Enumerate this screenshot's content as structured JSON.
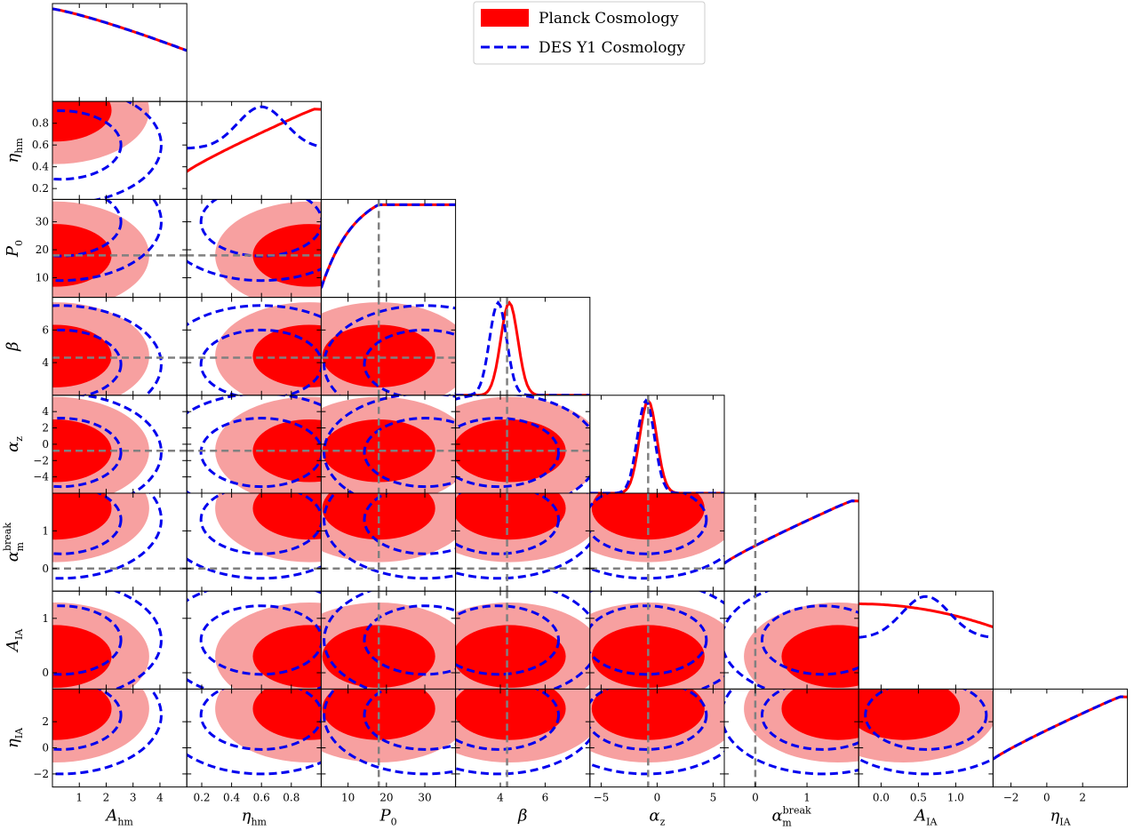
{
  "chart_data": {
    "type": "triangle-corner-plot",
    "parameters": [
      {
        "id": "A_hm",
        "symbol": "A",
        "sub": "hm",
        "sup": "",
        "range": [
          0,
          5
        ],
        "ticks": [
          1,
          2,
          3,
          4
        ],
        "tick_labels": [
          "1",
          "2",
          "3",
          "4"
        ],
        "fiducial": null
      },
      {
        "id": "eta_hm",
        "symbol": "η",
        "sub": "hm",
        "sup": "",
        "range": [
          0.1,
          1.0
        ],
        "ticks": [
          0.2,
          0.4,
          0.6,
          0.8
        ],
        "tick_labels": [
          "0.2",
          "0.4",
          "0.6",
          "0.8"
        ],
        "fiducial": null
      },
      {
        "id": "P0",
        "symbol": "P",
        "sub": "0",
        "sup": "",
        "range": [
          3,
          38
        ],
        "ticks": [
          10,
          20,
          30
        ],
        "tick_labels": [
          "10",
          "20",
          "30"
        ],
        "fiducial": 18
      },
      {
        "id": "beta",
        "symbol": "β",
        "sub": "",
        "sup": "",
        "range": [
          2,
          8
        ],
        "ticks": [
          4,
          6
        ],
        "tick_labels": [
          "4",
          "6"
        ],
        "fiducial": 4.3
      },
      {
        "id": "alpha_z",
        "symbol": "α",
        "sub": "z",
        "sup": "",
        "range": [
          -6,
          6
        ],
        "ticks": [
          -5,
          0,
          5
        ],
        "tick_labels": [
          "−5",
          "0",
          "5"
        ],
        "fiducial": -0.8
      },
      {
        "id": "alpha_m_break",
        "symbol": "α",
        "sub": "m",
        "sup": "break",
        "range": [
          -0.6,
          2.0
        ],
        "ticks": [
          0,
          1
        ],
        "tick_labels": [
          "0",
          "1"
        ],
        "fiducial": 0
      },
      {
        "id": "A_IA",
        "symbol": "A",
        "sub": "IA",
        "sup": "",
        "range": [
          -0.3,
          1.5
        ],
        "ticks": [
          0.0,
          0.5,
          1.0
        ],
        "tick_labels": [
          "0.0",
          "0.5",
          "1.0"
        ],
        "fiducial": null
      },
      {
        "id": "eta_IA",
        "symbol": "η",
        "sub": "IA",
        "sup": "",
        "range": [
          -3,
          4.5
        ],
        "ticks": [
          -2,
          0,
          2
        ],
        "tick_labels": [
          "−2",
          "0",
          "2"
        ],
        "fiducial": null
      }
    ],
    "row_tick_overrides": {
      "eta_hm": {
        "ticks": [
          0.2,
          0.4,
          0.6,
          0.8
        ],
        "tick_labels": [
          "0.2",
          "0.4",
          "0.6",
          "0.8"
        ]
      },
      "P0": {
        "ticks": [
          10,
          20,
          30
        ],
        "tick_labels": [
          "10",
          "20",
          "30"
        ]
      },
      "beta": {
        "ticks": [
          4,
          6
        ],
        "tick_labels": [
          "4",
          "6"
        ]
      },
      "alpha_z": {
        "ticks": [
          -4,
          -2,
          0,
          2,
          4
        ],
        "tick_labels": [
          "−4",
          "−2",
          "0",
          "2",
          "4"
        ]
      },
      "alpha_m_break": {
        "ticks": [
          0,
          1
        ],
        "tick_labels": [
          "0",
          "1"
        ]
      },
      "A_IA": {
        "ticks": [
          0,
          1
        ],
        "tick_labels": [
          "0",
          "1"
        ]
      },
      "eta_IA": {
        "ticks": [
          -2,
          0,
          2
        ],
        "tick_labels": [
          "−2",
          "0",
          "2"
        ]
      }
    },
    "series": [
      {
        "name": "Planck Cosmology",
        "style": "filled",
        "color": "#ff0000",
        "color_light": "#f7a0a0",
        "peaks": {
          "A_hm": 0.1,
          "eta_hm": 0.92,
          "P0": 18,
          "beta": 4.4,
          "alpha_z": -0.8,
          "alpha_m_break": 1.6,
          "A_IA": 0.3,
          "eta_IA": 3.0
        },
        "diag_shapes": {
          "A_hm": "decreasing",
          "eta_hm": "increasing",
          "P0": "rise-plateau",
          "beta": "gaussian",
          "alpha_z": "gaussian",
          "alpha_m_break": "increasing",
          "A_IA": "flat-decreasing",
          "eta_IA": "increasing"
        }
      },
      {
        "name": "DES Y1 Cosmology",
        "style": "dashed",
        "color": "#0000ee",
        "peaks": {
          "A_hm": 0.3,
          "eta_hm": 0.6,
          "P0": 30,
          "beta": 3.9,
          "alpha_z": -1.0,
          "alpha_m_break": 1.3,
          "A_IA": 0.6,
          "eta_IA": 2.5
        },
        "diag_shapes": {
          "A_hm": "decreasing",
          "eta_hm": "hump",
          "P0": "rise-plateau",
          "beta": "gaussian",
          "alpha_z": "gaussian",
          "alpha_m_break": "increasing",
          "A_IA": "hump",
          "eta_IA": "increasing"
        }
      }
    ],
    "fiducial_line_color": "#808080",
    "legend_placement": "top-center",
    "title": "",
    "grid": false
  },
  "legend": {
    "planck_label": "Planck Cosmology",
    "des_label": "DES Y1 Cosmology"
  }
}
